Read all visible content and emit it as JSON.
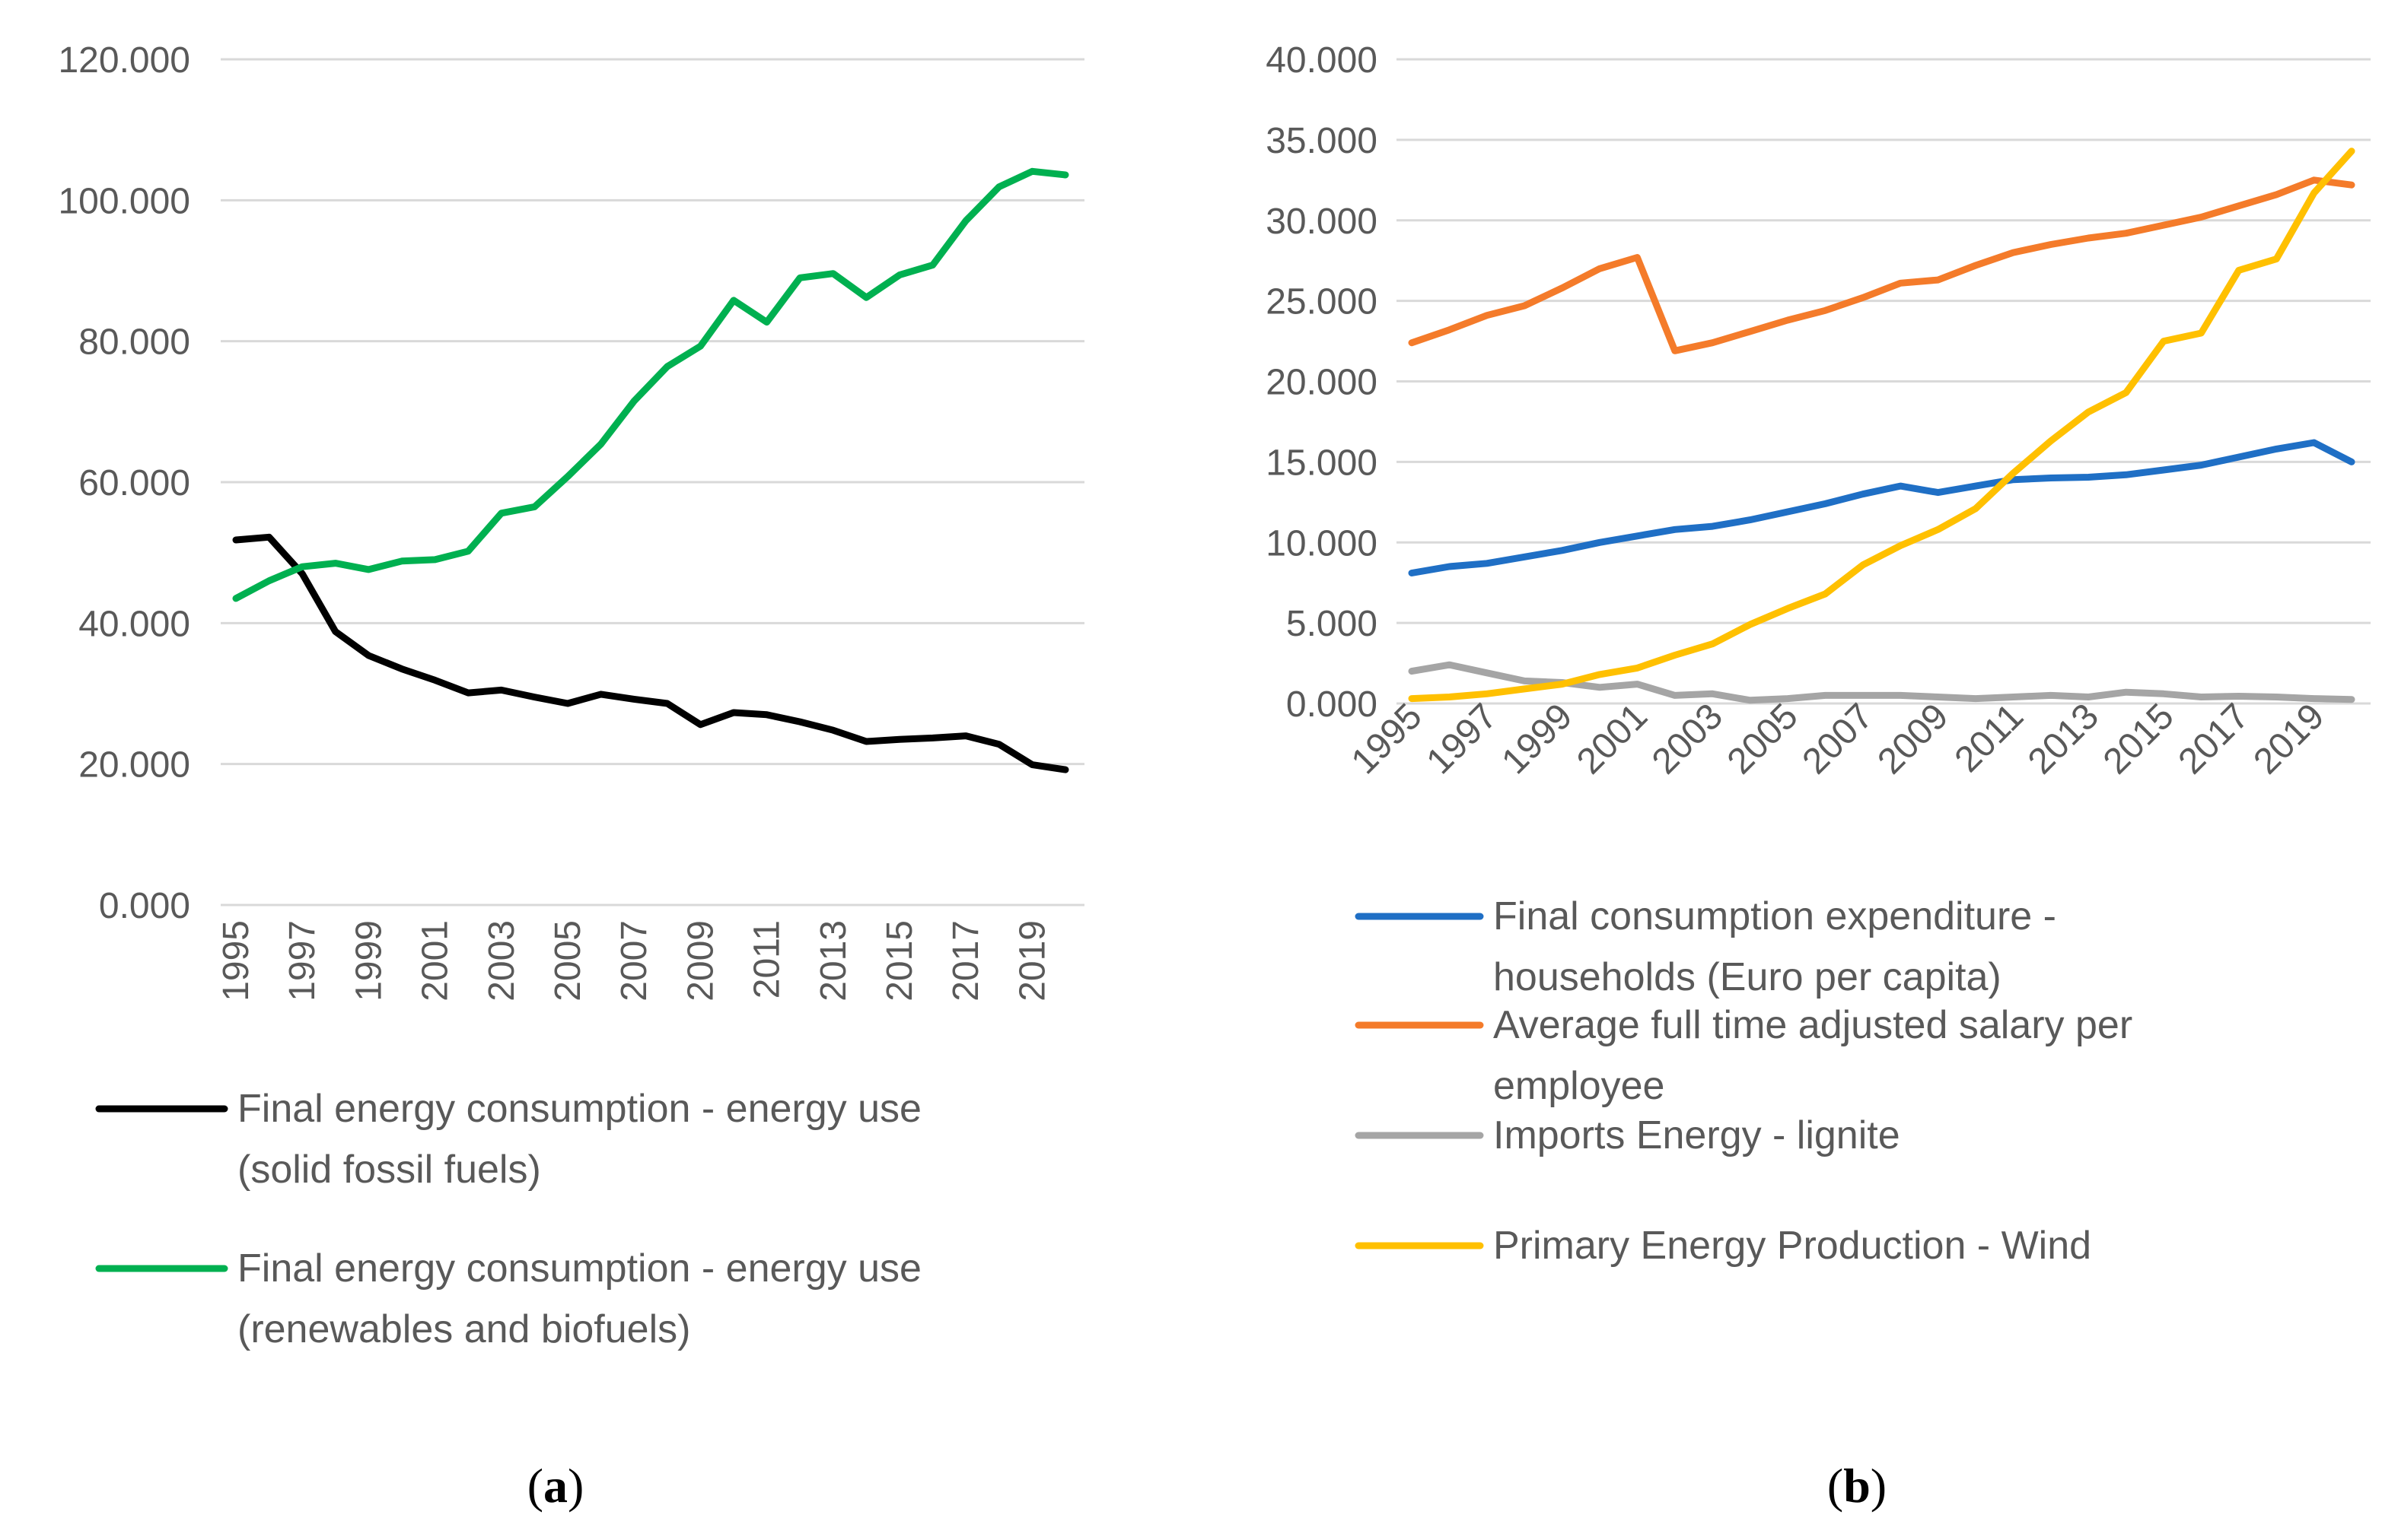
{
  "chart_data": [
    {
      "type": "line",
      "panel": "a",
      "caption_open": "(",
      "caption_letter": "a",
      "caption_close": ")",
      "title": "",
      "xlabel": "",
      "ylabel": "",
      "ylim": [
        0,
        120000
      ],
      "y_ticks": [
        "0.000",
        "20.000",
        "40.000",
        "60.000",
        "80.000",
        "100.000",
        "120.000"
      ],
      "grid": true,
      "legend_position": "bottom",
      "x": [
        1995,
        1996,
        1997,
        1998,
        1999,
        2000,
        2001,
        2002,
        2003,
        2004,
        2005,
        2006,
        2007,
        2008,
        2009,
        2010,
        2011,
        2012,
        2013,
        2014,
        2015,
        2016,
        2017,
        2018,
        2019,
        2020
      ],
      "x_tick_labels": [
        "1995",
        "1997",
        "1999",
        "2001",
        "2003",
        "2005",
        "2007",
        "2009",
        "2011",
        "2013",
        "2015",
        "2017",
        "2019"
      ],
      "series": [
        {
          "name_lines": [
            "Final energy consumption - energy use",
            "(solid fossil fuels)"
          ],
          "color": "#000000",
          "values": [
            51800,
            52200,
            47000,
            38800,
            35400,
            33500,
            31900,
            30100,
            30500,
            29500,
            28600,
            29900,
            29200,
            28600,
            25600,
            27300,
            27000,
            26000,
            24800,
            23200,
            23500,
            23700,
            24000,
            22800,
            19900,
            19200
          ]
        },
        {
          "name_lines": [
            "Final energy consumption - energy use",
            "(renewables and biofuels)"
          ],
          "color": "#00b050",
          "values": [
            43500,
            46000,
            48000,
            48500,
            47600,
            48800,
            49000,
            50200,
            55600,
            56500,
            60800,
            65400,
            71500,
            76400,
            79300,
            85800,
            82700,
            89000,
            89600,
            86200,
            89400,
            90800,
            97100,
            101900,
            104100,
            103600
          ]
        }
      ]
    },
    {
      "type": "line",
      "panel": "b",
      "caption_open": "(",
      "caption_letter": "b",
      "caption_close": ")",
      "title": "",
      "xlabel": "",
      "ylabel": "",
      "ylim": [
        0,
        40000
      ],
      "y_ticks": [
        "0.000",
        "5.000",
        "10.000",
        "15.000",
        "20.000",
        "25.000",
        "30.000",
        "35.000",
        "40.000"
      ],
      "grid": true,
      "legend_position": "bottom",
      "x": [
        1995,
        1996,
        1997,
        1998,
        1999,
        2000,
        2001,
        2002,
        2003,
        2004,
        2005,
        2006,
        2007,
        2008,
        2009,
        2010,
        2011,
        2012,
        2013,
        2014,
        2015,
        2016,
        2017,
        2018,
        2019,
        2020
      ],
      "x_tick_labels": [
        "1995",
        "1997",
        "1999",
        "2001",
        "2003",
        "2005",
        "2007",
        "2009",
        "2011",
        "2013",
        "2015",
        "2017",
        "2019"
      ],
      "series": [
        {
          "name_lines": [
            "Final consumption expenditure -",
            "households (Euro per capita)"
          ],
          "color": "#1f6fc5",
          "values": [
            8100,
            8500,
            8700,
            9100,
            9500,
            10000,
            10400,
            10800,
            11000,
            11400,
            11900,
            12400,
            13000,
            13500,
            13100,
            13500,
            13900,
            14000,
            14050,
            14200,
            14500,
            14800,
            15300,
            15800,
            16200,
            15000
          ]
        },
        {
          "name_lines": [
            "Average full time adjusted salary per",
            "employee"
          ],
          "color": "#f47b2a",
          "values": [
            22400,
            23200,
            24100,
            24700,
            25800,
            27000,
            27700,
            21900,
            22400,
            23100,
            23800,
            24400,
            25200,
            26100,
            26300,
            27200,
            28000,
            28500,
            28900,
            29200,
            29700,
            30200,
            30900,
            31600,
            32500,
            32200
          ]
        },
        {
          "name_lines": [
            "Imports Energy - lignite"
          ],
          "color": "#a5a5a5",
          "values": [
            2000,
            2400,
            1900,
            1400,
            1300,
            1000,
            1200,
            500,
            600,
            200,
            300,
            500,
            500,
            500,
            400,
            300,
            400,
            500,
            400,
            700,
            600,
            400,
            450,
            400,
            300,
            250
          ]
        },
        {
          "name_lines": [
            "Primary Energy Production - Wind"
          ],
          "color": "#ffc000",
          "values": [
            300,
            400,
            600,
            900,
            1200,
            1800,
            2200,
            3000,
            3700,
            4900,
            5900,
            6800,
            8600,
            9800,
            10800,
            12100,
            14300,
            16300,
            18100,
            19300,
            22500,
            23000,
            26900,
            27600,
            31700,
            34300
          ]
        }
      ]
    }
  ]
}
